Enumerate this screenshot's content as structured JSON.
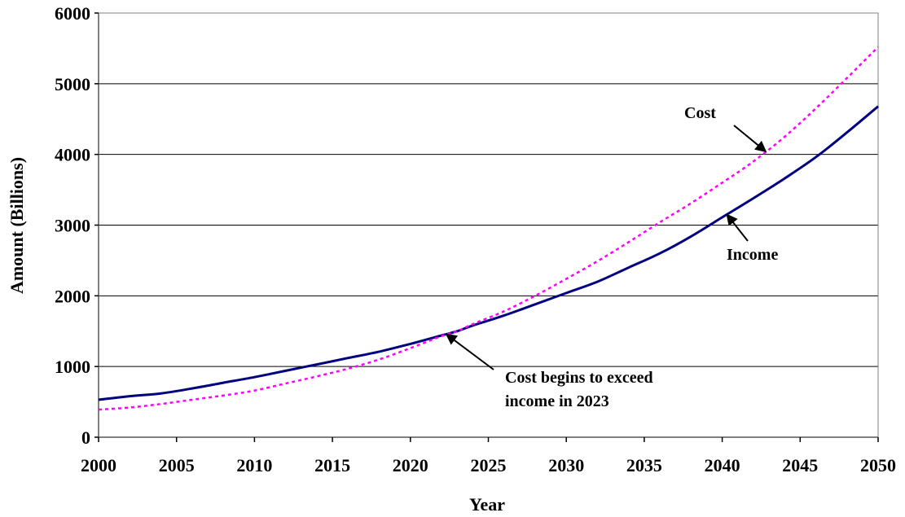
{
  "chart_data": {
    "type": "line",
    "title": "",
    "xlabel": "Year",
    "ylabel": "Amount (Billions)",
    "xlim": [
      2000,
      2050
    ],
    "ylim": [
      0,
      6000
    ],
    "xticks": [
      2000,
      2005,
      2010,
      2015,
      2020,
      2025,
      2030,
      2035,
      2040,
      2045,
      2050
    ],
    "yticks": [
      0,
      1000,
      2000,
      3000,
      4000,
      5000,
      6000
    ],
    "grid": "horizontal",
    "legend": "none",
    "x": [
      2000,
      2002,
      2004,
      2006,
      2008,
      2010,
      2012,
      2014,
      2016,
      2018,
      2020,
      2022,
      2023,
      2024,
      2026,
      2028,
      2030,
      2032,
      2034,
      2036,
      2038,
      2040,
      2042,
      2044,
      2046,
      2048,
      2050
    ],
    "series": [
      {
        "name": "Income",
        "color": "#000080",
        "style": "solid",
        "values": [
          530,
          580,
          620,
          690,
          770,
          850,
          940,
          1030,
          1120,
          1210,
          1320,
          1440,
          1500,
          1580,
          1720,
          1880,
          2040,
          2200,
          2400,
          2600,
          2840,
          3110,
          3380,
          3660,
          3960,
          4310,
          4680
        ]
      },
      {
        "name": "Cost",
        "color": "#ff00ff",
        "style": "dotted",
        "values": [
          390,
          420,
          470,
          530,
          590,
          660,
          760,
          860,
          970,
          1100,
          1260,
          1430,
          1500,
          1600,
          1780,
          2000,
          2240,
          2490,
          2760,
          3040,
          3310,
          3600,
          3900,
          4250,
          4650,
          5080,
          5520
        ]
      }
    ],
    "annotations": [
      {
        "label": "Cost",
        "series": "Cost",
        "point_x": 2042.8
      },
      {
        "label": "Income",
        "series": "Income",
        "point_x": 2040.3
      },
      {
        "label_lines": [
          "Cost begins to exceed",
          "income in 2023"
        ],
        "series": "Income",
        "point_x": 2022.3
      }
    ]
  }
}
